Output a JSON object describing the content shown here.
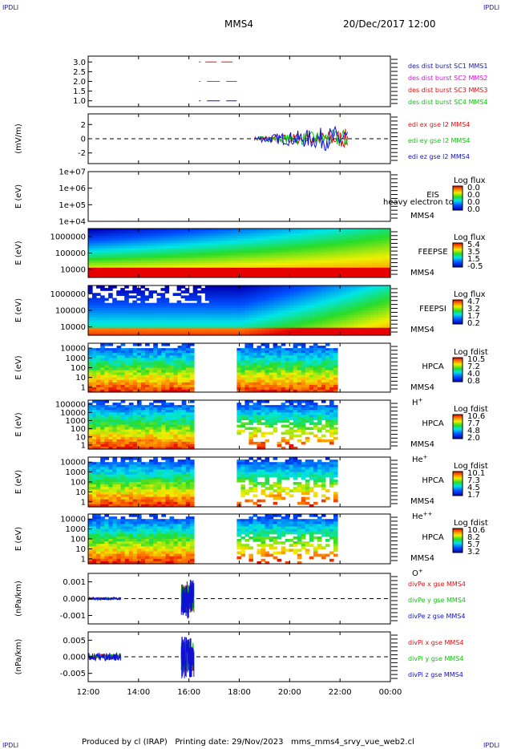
{
  "header": {
    "corner_label": "IPDLI",
    "spacecraft": "MMS4",
    "date_time": "20/Dec/2017 12:00"
  },
  "footer": {
    "text": "Produced by cl (IRAP)   Printing date: 29/Nov/2023   mms_mms4_srvy_vue_web2.cl"
  },
  "x_axis": {
    "tick_labels": [
      "12:00",
      "14:00",
      "16:00",
      "18:00",
      "20:00",
      "22:00",
      "00:00"
    ],
    "range_hours": [
      12,
      24
    ]
  },
  "colors": {
    "red": "#e01010",
    "green": "#10c010",
    "blue": "#1010d0",
    "magenta": "#e010e0",
    "label_blue": "#1a1aa8"
  },
  "chart_data": [
    {
      "type": "line",
      "ylabel": "",
      "ylim": [
        0.7,
        3.3
      ],
      "yticks": [
        "3.0",
        "2.5",
        "2.0",
        "1.5",
        "1.0"
      ],
      "legend": [
        {
          "text": "des dist burst SC1 MMS1",
          "color": "#1a1aa8"
        },
        {
          "text": "des dist burst SC2 MMS2",
          "color": "#e010e0"
        },
        {
          "text": "des dist burst SC3 MMS3",
          "color": "#e01010"
        },
        {
          "text": "des dist burst SC4 MMS4",
          "color": "#10c010"
        }
      ],
      "series": [
        {
          "name": "des dist burst SC3 MMS3",
          "color": "#e01010",
          "x": [
            16.4,
            17.9
          ],
          "y": [
            3.0,
            3.0
          ]
        },
        {
          "name": "des dist burst SC2 MMS2",
          "color": "#e010e0",
          "x": [
            16.4,
            17.9
          ],
          "y": [
            2.0,
            2.0
          ]
        },
        {
          "name": "des dist burst SC1 MMS1",
          "color": "#1010d0",
          "x": [
            16.4,
            17.9
          ],
          "y": [
            1.0,
            1.0
          ]
        }
      ]
    },
    {
      "type": "line",
      "ylabel": "(mV/m)",
      "ylim": [
        -3.5,
        3.5
      ],
      "yticks": [
        "2",
        "0",
        "-2"
      ],
      "legend": [
        {
          "text": "edi ex gse l2 MMS4",
          "color": "#e01010"
        },
        {
          "text": "edi ey gse l2 MMS4",
          "color": "#10c010"
        },
        {
          "text": "edi ez gse l2 MMS4",
          "color": "#1010d0"
        }
      ],
      "active_interval_hours": [
        18.6,
        22.3
      ]
    },
    {
      "type": "heatmap",
      "ylabel": "E (eV)",
      "yticks": [
        "1e+07",
        "1e+06",
        "1e+05",
        "1e+04"
      ],
      "instrument": [
        "EIS",
        "MMS4"
      ],
      "overlay_text": "heavy electron to",
      "colorbar": {
        "title": "Log flux",
        "labels": [
          "0.0",
          "0.0",
          "0.0",
          "0.0"
        ]
      },
      "coverage": []
    },
    {
      "type": "heatmap",
      "ylabel": "E (eV)",
      "yticks": [
        "1000000",
        "100000",
        "10000"
      ],
      "instrument": [
        "FEEPSE",
        "MMS4"
      ],
      "colorbar": {
        "title": "Log flux",
        "labels": [
          "5.4",
          "3.5",
          "1.5",
          "-0.5"
        ]
      },
      "coverage": [
        [
          12.0,
          24.0
        ]
      ]
    },
    {
      "type": "heatmap",
      "ylabel": "E (eV)",
      "yticks": [
        "1000000",
        "100000",
        "10000"
      ],
      "instrument": [
        "FEEPSI",
        "MMS4"
      ],
      "colorbar": {
        "title": "Log flux",
        "labels": [
          "4.7",
          "3.2",
          "1.7",
          "0.2"
        ]
      },
      "coverage": [
        [
          12.0,
          24.0
        ]
      ]
    },
    {
      "type": "heatmap",
      "ylabel": "E (eV)",
      "yticks": [
        "10000",
        "1000",
        "100",
        "10",
        "1"
      ],
      "instrument": [
        "HPCA",
        "MMS4"
      ],
      "species": "H",
      "species_sup": "+",
      "colorbar": {
        "title": "Log fdist",
        "labels": [
          "10.5",
          "7.2",
          "4.0",
          "0.8"
        ]
      },
      "coverage": [
        [
          12.0,
          16.2
        ],
        [
          17.9,
          21.9
        ]
      ]
    },
    {
      "type": "heatmap",
      "ylabel": "E (eV)",
      "yticks": [
        "100000",
        "10000",
        "1000",
        "100",
        "10",
        "1"
      ],
      "instrument": [
        "HPCA",
        "MMS4"
      ],
      "species": "He",
      "species_sup": "+",
      "colorbar": {
        "title": "Log fdist",
        "labels": [
          "10.6",
          "7.7",
          "4.8",
          "2.0"
        ]
      },
      "coverage": [
        [
          12.0,
          16.2
        ],
        [
          17.9,
          21.9
        ]
      ]
    },
    {
      "type": "heatmap",
      "ylabel": "E (eV)",
      "yticks": [
        "10000",
        "1000",
        "100",
        "10",
        "1"
      ],
      "instrument": [
        "HPCA",
        "MMS4"
      ],
      "species": "He",
      "species_sup": "++",
      "colorbar": {
        "title": "Log fdist",
        "labels": [
          "10.1",
          "7.3",
          "4.5",
          "1.7"
        ]
      },
      "coverage": [
        [
          12.0,
          16.2
        ],
        [
          17.9,
          21.9
        ]
      ]
    },
    {
      "type": "heatmap",
      "ylabel": "E (eV)",
      "yticks": [
        "10000",
        "1000",
        "100",
        "10",
        "1"
      ],
      "instrument": [
        "HPCA",
        "MMS4"
      ],
      "species": "O",
      "species_sup": "+",
      "colorbar": {
        "title": "Log fdist",
        "labels": [
          "10.6",
          "8.2",
          "5.7",
          "3.2"
        ]
      },
      "coverage": [
        [
          12.0,
          16.2
        ],
        [
          17.9,
          21.9
        ]
      ]
    },
    {
      "type": "line",
      "ylabel": "(nPa/km)",
      "ylim": [
        -0.0015,
        0.0015
      ],
      "yticks": [
        "0.001",
        "0.000",
        "-0.001"
      ],
      "legend": [
        {
          "text": "divPe x gse MMS4",
          "color": "#e01010"
        },
        {
          "text": "divPe y gse MMS4",
          "color": "#10c010"
        },
        {
          "text": "divPe z gse MMS4",
          "color": "#1010d0"
        }
      ],
      "bursts": [
        {
          "x": [
            12.0,
            13.3
          ],
          "amp": 8e-05
        },
        {
          "x": [
            15.7,
            16.2
          ],
          "amp": 0.0012
        }
      ]
    },
    {
      "type": "line",
      "ylabel": "(nPa/km)",
      "ylim": [
        -0.0075,
        0.0075
      ],
      "yticks": [
        "0.005",
        "0.000",
        "-0.005"
      ],
      "legend": [
        {
          "text": "divPi x gse MMS4",
          "color": "#e01010"
        },
        {
          "text": "divPi y gse MMS4",
          "color": "#10c010"
        },
        {
          "text": "divPi z gse MMS4",
          "color": "#1010d0"
        }
      ],
      "bursts": [
        {
          "x": [
            12.0,
            13.3
          ],
          "amp": 0.0012
        },
        {
          "x": [
            15.7,
            16.2
          ],
          "amp": 0.0065
        }
      ]
    }
  ]
}
